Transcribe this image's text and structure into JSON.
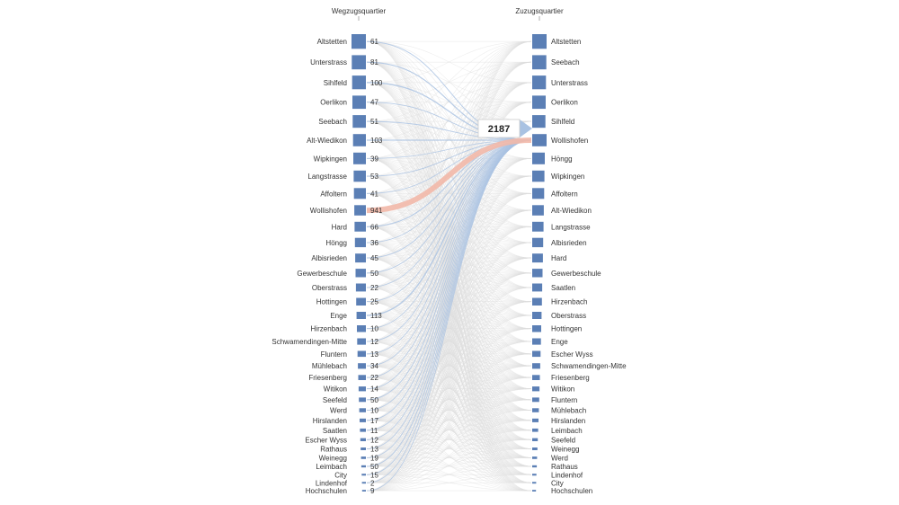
{
  "chart_data": {
    "type": "sankey",
    "left_title": "Wegzugsquartier",
    "right_title": "Zuzugsquartier",
    "highlight_target": "Wollishofen",
    "highlight_source": "Wollishofen",
    "highlight_total": 2187,
    "sources": [
      {
        "name": "Altstetten",
        "value": 61
      },
      {
        "name": "Unterstrass",
        "value": 81
      },
      {
        "name": "Sihlfeld",
        "value": 100
      },
      {
        "name": "Oerlikon",
        "value": 47
      },
      {
        "name": "Seebach",
        "value": 51
      },
      {
        "name": "Alt-Wiedikon",
        "value": 103
      },
      {
        "name": "Wipkingen",
        "value": 39
      },
      {
        "name": "Langstrasse",
        "value": 53
      },
      {
        "name": "Affoltern",
        "value": 41
      },
      {
        "name": "Wollishofen",
        "value": 941
      },
      {
        "name": "Hard",
        "value": 66
      },
      {
        "name": "Höngg",
        "value": 36
      },
      {
        "name": "Albisrieden",
        "value": 45
      },
      {
        "name": "Gewerbeschule",
        "value": 50
      },
      {
        "name": "Oberstrass",
        "value": 22
      },
      {
        "name": "Hottingen",
        "value": 25
      },
      {
        "name": "Enge",
        "value": 113
      },
      {
        "name": "Hirzenbach",
        "value": 10
      },
      {
        "name": "Schwamendingen-Mitte",
        "value": 12
      },
      {
        "name": "Fluntern",
        "value": 13
      },
      {
        "name": "Mühlebach",
        "value": 34
      },
      {
        "name": "Friesenberg",
        "value": 22
      },
      {
        "name": "Witikon",
        "value": 14
      },
      {
        "name": "Seefeld",
        "value": 50
      },
      {
        "name": "Werd",
        "value": 10
      },
      {
        "name": "Hirslanden",
        "value": 17
      },
      {
        "name": "Saatlen",
        "value": 11
      },
      {
        "name": "Escher Wyss",
        "value": 12
      },
      {
        "name": "Rathaus",
        "value": 13
      },
      {
        "name": "Weinegg",
        "value": 19
      },
      {
        "name": "Leimbach",
        "value": 50
      },
      {
        "name": "City",
        "value": 15
      },
      {
        "name": "Lindenhof",
        "value": 2
      },
      {
        "name": "Hochschulen",
        "value": 9
      }
    ],
    "targets": [
      "Altstetten",
      "Seebach",
      "Unterstrass",
      "Oerlikon",
      "Sihlfeld",
      "Wollishofen",
      "Höngg",
      "Wipkingen",
      "Affoltern",
      "Alt-Wiedikon",
      "Langstrasse",
      "Albisrieden",
      "Hard",
      "Gewerbeschule",
      "Saatlen",
      "Hirzenbach",
      "Oberstrass",
      "Hottingen",
      "Enge",
      "Escher Wyss",
      "Schwamendingen-Mitte",
      "Friesenberg",
      "Witikon",
      "Fluntern",
      "Mühlebach",
      "Hirslanden",
      "Leimbach",
      "Seefeld",
      "Weinegg",
      "Werd",
      "Rathaus",
      "Lindenhof",
      "City",
      "Hochschulen"
    ]
  },
  "colors": {
    "node": "#5b7fb5",
    "link_grey": "#dedede",
    "link_blue": "#a9c2e2",
    "link_highlight": "#f2b8a8",
    "total_box_border": "#cccccc"
  }
}
